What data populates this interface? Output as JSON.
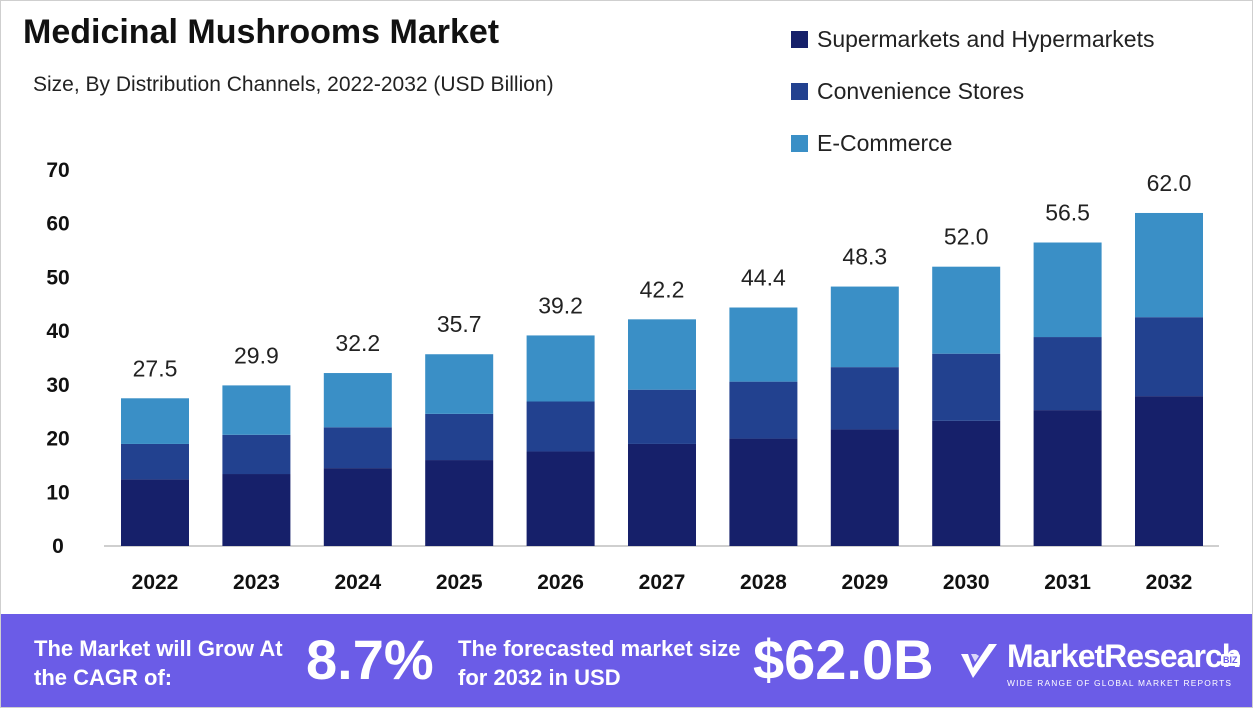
{
  "header": {
    "title": "Medicinal Mushrooms Market",
    "subtitle": "Size, By Distribution Channels, 2022-2032 (USD Billion)"
  },
  "chart_data": {
    "type": "bar",
    "stacked": true,
    "categories": [
      "2022",
      "2023",
      "2024",
      "2025",
      "2026",
      "2027",
      "2028",
      "2029",
      "2030",
      "2031",
      "2032"
    ],
    "series": [
      {
        "name": "Supermarkets and Hypermarkets",
        "color": "#16206a",
        "values": [
          12.4,
          13.4,
          14.5,
          16.0,
          17.6,
          19.0,
          20.0,
          21.7,
          23.3,
          25.3,
          27.9
        ]
      },
      {
        "name": "Convenience Stores",
        "color": "#22418f",
        "values": [
          6.6,
          7.3,
          7.6,
          8.6,
          9.3,
          10.1,
          10.6,
          11.6,
          12.5,
          13.6,
          14.7
        ]
      },
      {
        "name": "E-Commerce",
        "color": "#3a8fc6",
        "values": [
          8.5,
          9.2,
          10.1,
          11.1,
          12.3,
          13.1,
          13.8,
          15.0,
          16.2,
          17.6,
          19.4
        ]
      }
    ],
    "totals": [
      "27.5",
      "29.9",
      "32.2",
      "35.7",
      "39.2",
      "42.2",
      "44.4",
      "48.3",
      "52.0",
      "56.5",
      "62.0"
    ],
    "yticks": [
      "0",
      "10",
      "20",
      "30",
      "40",
      "50",
      "60",
      "70"
    ],
    "ylim": [
      0,
      70
    ],
    "xlabel": "",
    "ylabel": "",
    "grid": false,
    "legend_position": "top-right"
  },
  "footer": {
    "cagr_label": "The Market will Grow At the CAGR of:",
    "cagr_value": "8.7%",
    "forecast_label": "The forecasted market size for 2032 in USD",
    "forecast_value": "$62.0B",
    "logo_name": "MarketResearch",
    "logo_badge": "BIZ",
    "logo_tagline": "WIDE RANGE OF GLOBAL MARKET REPORTS",
    "background_color": "#6b5ce7"
  }
}
